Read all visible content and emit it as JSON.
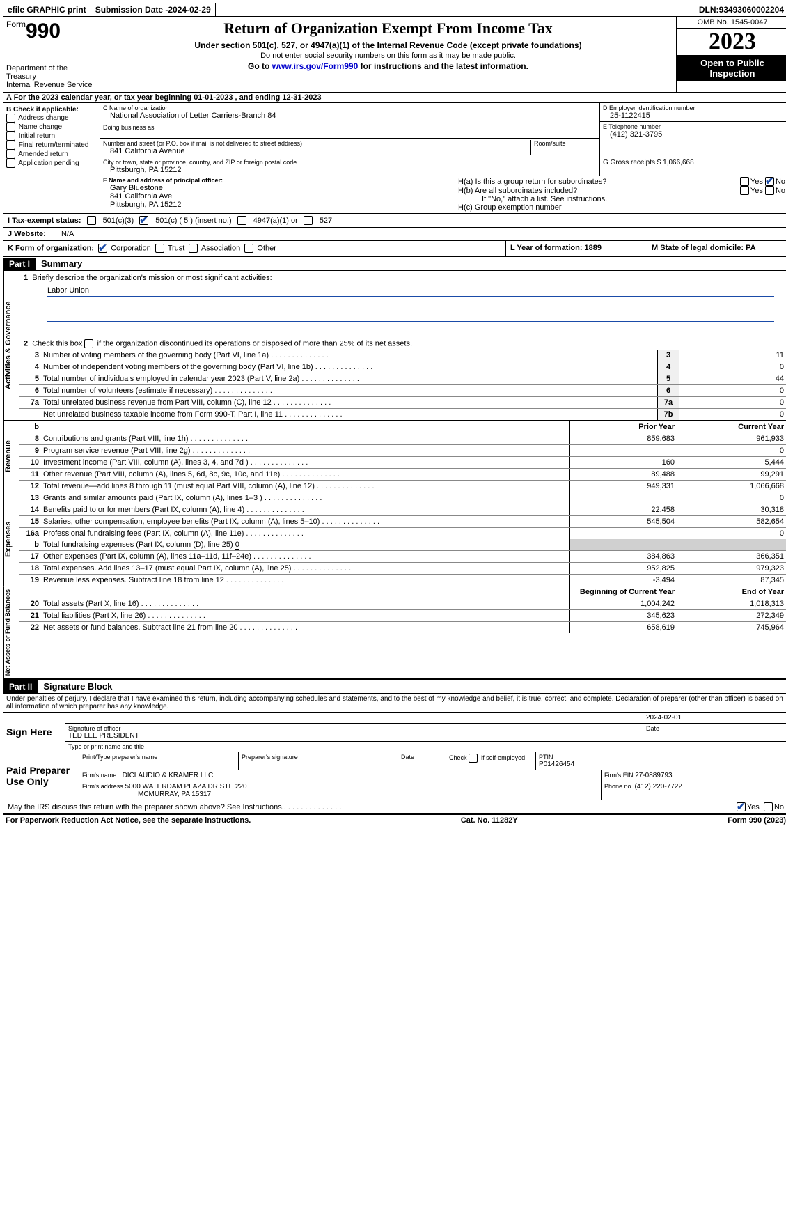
{
  "topbar": {
    "efile": "efile GRAPHIC print",
    "sub_label": "Submission Date - ",
    "sub_date": "2024-02-29",
    "dln_label": "DLN: ",
    "dln": "93493060002204"
  },
  "header": {
    "form_word": "Form",
    "form_num": "990",
    "dept": "Department of the Treasury\nInternal Revenue Service",
    "title": "Return of Organization Exempt From Income Tax",
    "sub1": "Under section 501(c), 527, or 4947(a)(1) of the Internal Revenue Code (except private foundations)",
    "sub2": "Do not enter social security numbers on this form as it may be made public.",
    "sub3_pre": "Go to ",
    "sub3_link": "www.irs.gov/Form990",
    "sub3_post": " for instructions and the latest information.",
    "omb": "OMB No. 1545-0047",
    "year": "2023",
    "open": "Open to Public Inspection"
  },
  "row_a": {
    "text": "A For the 2023 calendar year, or tax year beginning 01-01-2023    , and ending 12-31-2023"
  },
  "box_b": {
    "label": "B Check if applicable:",
    "items": [
      "Address change",
      "Name change",
      "Initial return",
      "Final return/terminated",
      "Amended return",
      "Application pending"
    ]
  },
  "box_c": {
    "name_label": "C Name of organization",
    "name": "National Association of Letter Carriers-Branch 84",
    "dba_label": "Doing business as",
    "addr_label": "Number and street (or P.O. box if mail is not delivered to street address)",
    "addr": "841 California Avenue",
    "room_label": "Room/suite",
    "city_label": "City or town, state or province, country, and ZIP or foreign postal code",
    "city": "Pittsburgh, PA  15212"
  },
  "box_d": {
    "label": "D Employer identification number",
    "val": "25-1122415"
  },
  "box_e": {
    "label": "E Telephone number",
    "val": "(412) 321-3795"
  },
  "box_g": {
    "label": "G Gross receipts $ ",
    "val": "1,066,668"
  },
  "box_f": {
    "label": "F  Name and address of principal officer:",
    "line1": "Gary Bluestone",
    "line2": "841 California Ave",
    "line3": "Pittsburgh, PA  15212"
  },
  "box_h": {
    "a": "H(a)  Is this a group return for subordinates?",
    "b": "H(b)  Are all subordinates included?",
    "b_note": "If \"No,\" attach a list. See instructions.",
    "c": "H(c)  Group exemption number",
    "yes": "Yes",
    "no": "No"
  },
  "status": {
    "i_label": "I    Tax-exempt status:",
    "c3": "501(c)(3)",
    "c5": "501(c) ( 5 ) (insert no.)",
    "a1": "4947(a)(1) or",
    "s527": "527",
    "j_label": "J    Website:",
    "j_val": "N/A"
  },
  "klm": {
    "k_label": "K Form of organization:",
    "k_opts": [
      "Corporation",
      "Trust",
      "Association",
      "Other"
    ],
    "l": "L Year of formation: 1889",
    "m": "M State of legal domicile: PA"
  },
  "part1": {
    "num": "Part I",
    "title": "Summary"
  },
  "ag": {
    "tab": "Activities & Governance",
    "l1_label": "Briefly describe the organization's mission or most significant activities:",
    "l1_val": "Labor Union",
    "l2": "Check this box       if the organization discontinued its operations or disposed of more than 25% of its net assets.",
    "rows": [
      {
        "n": "3",
        "t": "Number of voting members of the governing body (Part VI, line 1a)",
        "b": "3",
        "v": "11"
      },
      {
        "n": "4",
        "t": "Number of independent voting members of the governing body (Part VI, line 1b)",
        "b": "4",
        "v": "0"
      },
      {
        "n": "5",
        "t": "Total number of individuals employed in calendar year 2023 (Part V, line 2a)",
        "b": "5",
        "v": "44"
      },
      {
        "n": "6",
        "t": "Total number of volunteers (estimate if necessary)",
        "b": "6",
        "v": "0"
      },
      {
        "n": "7a",
        "t": "Total unrelated business revenue from Part VIII, column (C), line 12",
        "b": "7a",
        "v": "0"
      },
      {
        "n": "",
        "t": "Net unrelated business taxable income from Form 990-T, Part I, line 11",
        "b": "7b",
        "v": "0"
      }
    ]
  },
  "rev": {
    "tab": "Revenue",
    "hdr_prior": "Prior Year",
    "hdr_curr": "Current Year",
    "rows": [
      {
        "n": "8",
        "t": "Contributions and grants (Part VIII, line 1h)",
        "p": "859,683",
        "c": "961,933"
      },
      {
        "n": "9",
        "t": "Program service revenue (Part VIII, line 2g)",
        "p": "",
        "c": "0"
      },
      {
        "n": "10",
        "t": "Investment income (Part VIII, column (A), lines 3, 4, and 7d )",
        "p": "160",
        "c": "5,444"
      },
      {
        "n": "11",
        "t": "Other revenue (Part VIII, column (A), lines 5, 6d, 8c, 9c, 10c, and 11e)",
        "p": "89,488",
        "c": "99,291"
      },
      {
        "n": "12",
        "t": "Total revenue—add lines 8 through 11 (must equal Part VIII, column (A), line 12)",
        "p": "949,331",
        "c": "1,066,668"
      }
    ]
  },
  "exp": {
    "tab": "Expenses",
    "rows": [
      {
        "n": "13",
        "t": "Grants and similar amounts paid (Part IX, column (A), lines 1–3 )",
        "p": "",
        "c": "0"
      },
      {
        "n": "14",
        "t": "Benefits paid to or for members (Part IX, column (A), line 4)",
        "p": "22,458",
        "c": "30,318"
      },
      {
        "n": "15",
        "t": "Salaries, other compensation, employee benefits (Part IX, column (A), lines 5–10)",
        "p": "545,504",
        "c": "582,654"
      },
      {
        "n": "16a",
        "t": "Professional fundraising fees (Part IX, column (A), line 11e)",
        "p": "",
        "c": "0"
      }
    ],
    "b_label": "Total fundraising expenses (Part IX, column (D), line 25) ",
    "b_val": "0",
    "rows2": [
      {
        "n": "17",
        "t": "Other expenses (Part IX, column (A), lines 11a–11d, 11f–24e)",
        "p": "384,863",
        "c": "366,351"
      },
      {
        "n": "18",
        "t": "Total expenses. Add lines 13–17 (must equal Part IX, column (A), line 25)",
        "p": "952,825",
        "c": "979,323"
      },
      {
        "n": "19",
        "t": "Revenue less expenses. Subtract line 18 from line 12",
        "p": "-3,494",
        "c": "87,345"
      }
    ]
  },
  "net": {
    "tab": "Net Assets or Fund Balances",
    "hdr_beg": "Beginning of Current Year",
    "hdr_end": "End of Year",
    "rows": [
      {
        "n": "20",
        "t": "Total assets (Part X, line 16)",
        "p": "1,004,242",
        "c": "1,018,313"
      },
      {
        "n": "21",
        "t": "Total liabilities (Part X, line 26)",
        "p": "345,623",
        "c": "272,349"
      },
      {
        "n": "22",
        "t": "Net assets or fund balances. Subtract line 21 from line 20",
        "p": "658,619",
        "c": "745,964"
      }
    ]
  },
  "part2": {
    "num": "Part II",
    "title": "Signature Block"
  },
  "perjury": "Under penalties of perjury, I declare that I have examined this return, including accompanying schedules and statements, and to the best of my knowledge and belief, it is true, correct, and complete. Declaration of preparer (other than officer) is based on all information of which preparer has any knowledge.",
  "sign": {
    "left": "Sign Here",
    "date": "2024-02-01",
    "sig_of_officer": "Signature of officer",
    "date_label": "Date",
    "officer": "TED LEE PRESIDENT",
    "type_label": "Type or print name and title"
  },
  "paid": {
    "left": "Paid Preparer Use Only",
    "h1": "Print/Type preparer's name",
    "h2": "Preparer's signature",
    "h3": "Date",
    "h4_pre": "Check",
    "h4_post": "if self-employed",
    "h5": "PTIN",
    "ptin": "P01426454",
    "firm_label": "Firm's name",
    "firm": "DICLAUDIO & KRAMER LLC",
    "ein_label": "Firm's EIN ",
    "ein": "27-0889793",
    "addr_label": "Firm's address",
    "addr1": "5000 WATERDAM PLAZA DR STE 220",
    "addr2": "MCMURRAY, PA  15317",
    "phone_label": "Phone no. ",
    "phone": "(412) 220-7722"
  },
  "discuss": {
    "q": "May the IRS discuss this return with the preparer shown above? See Instructions.",
    "yes": "Yes",
    "no": "No"
  },
  "footer": {
    "left": "For Paperwork Reduction Act Notice, see the separate instructions.",
    "mid": "Cat. No. 11282Y",
    "right_pre": "Form ",
    "right_num": "990",
    "right_post": " (2023)"
  }
}
